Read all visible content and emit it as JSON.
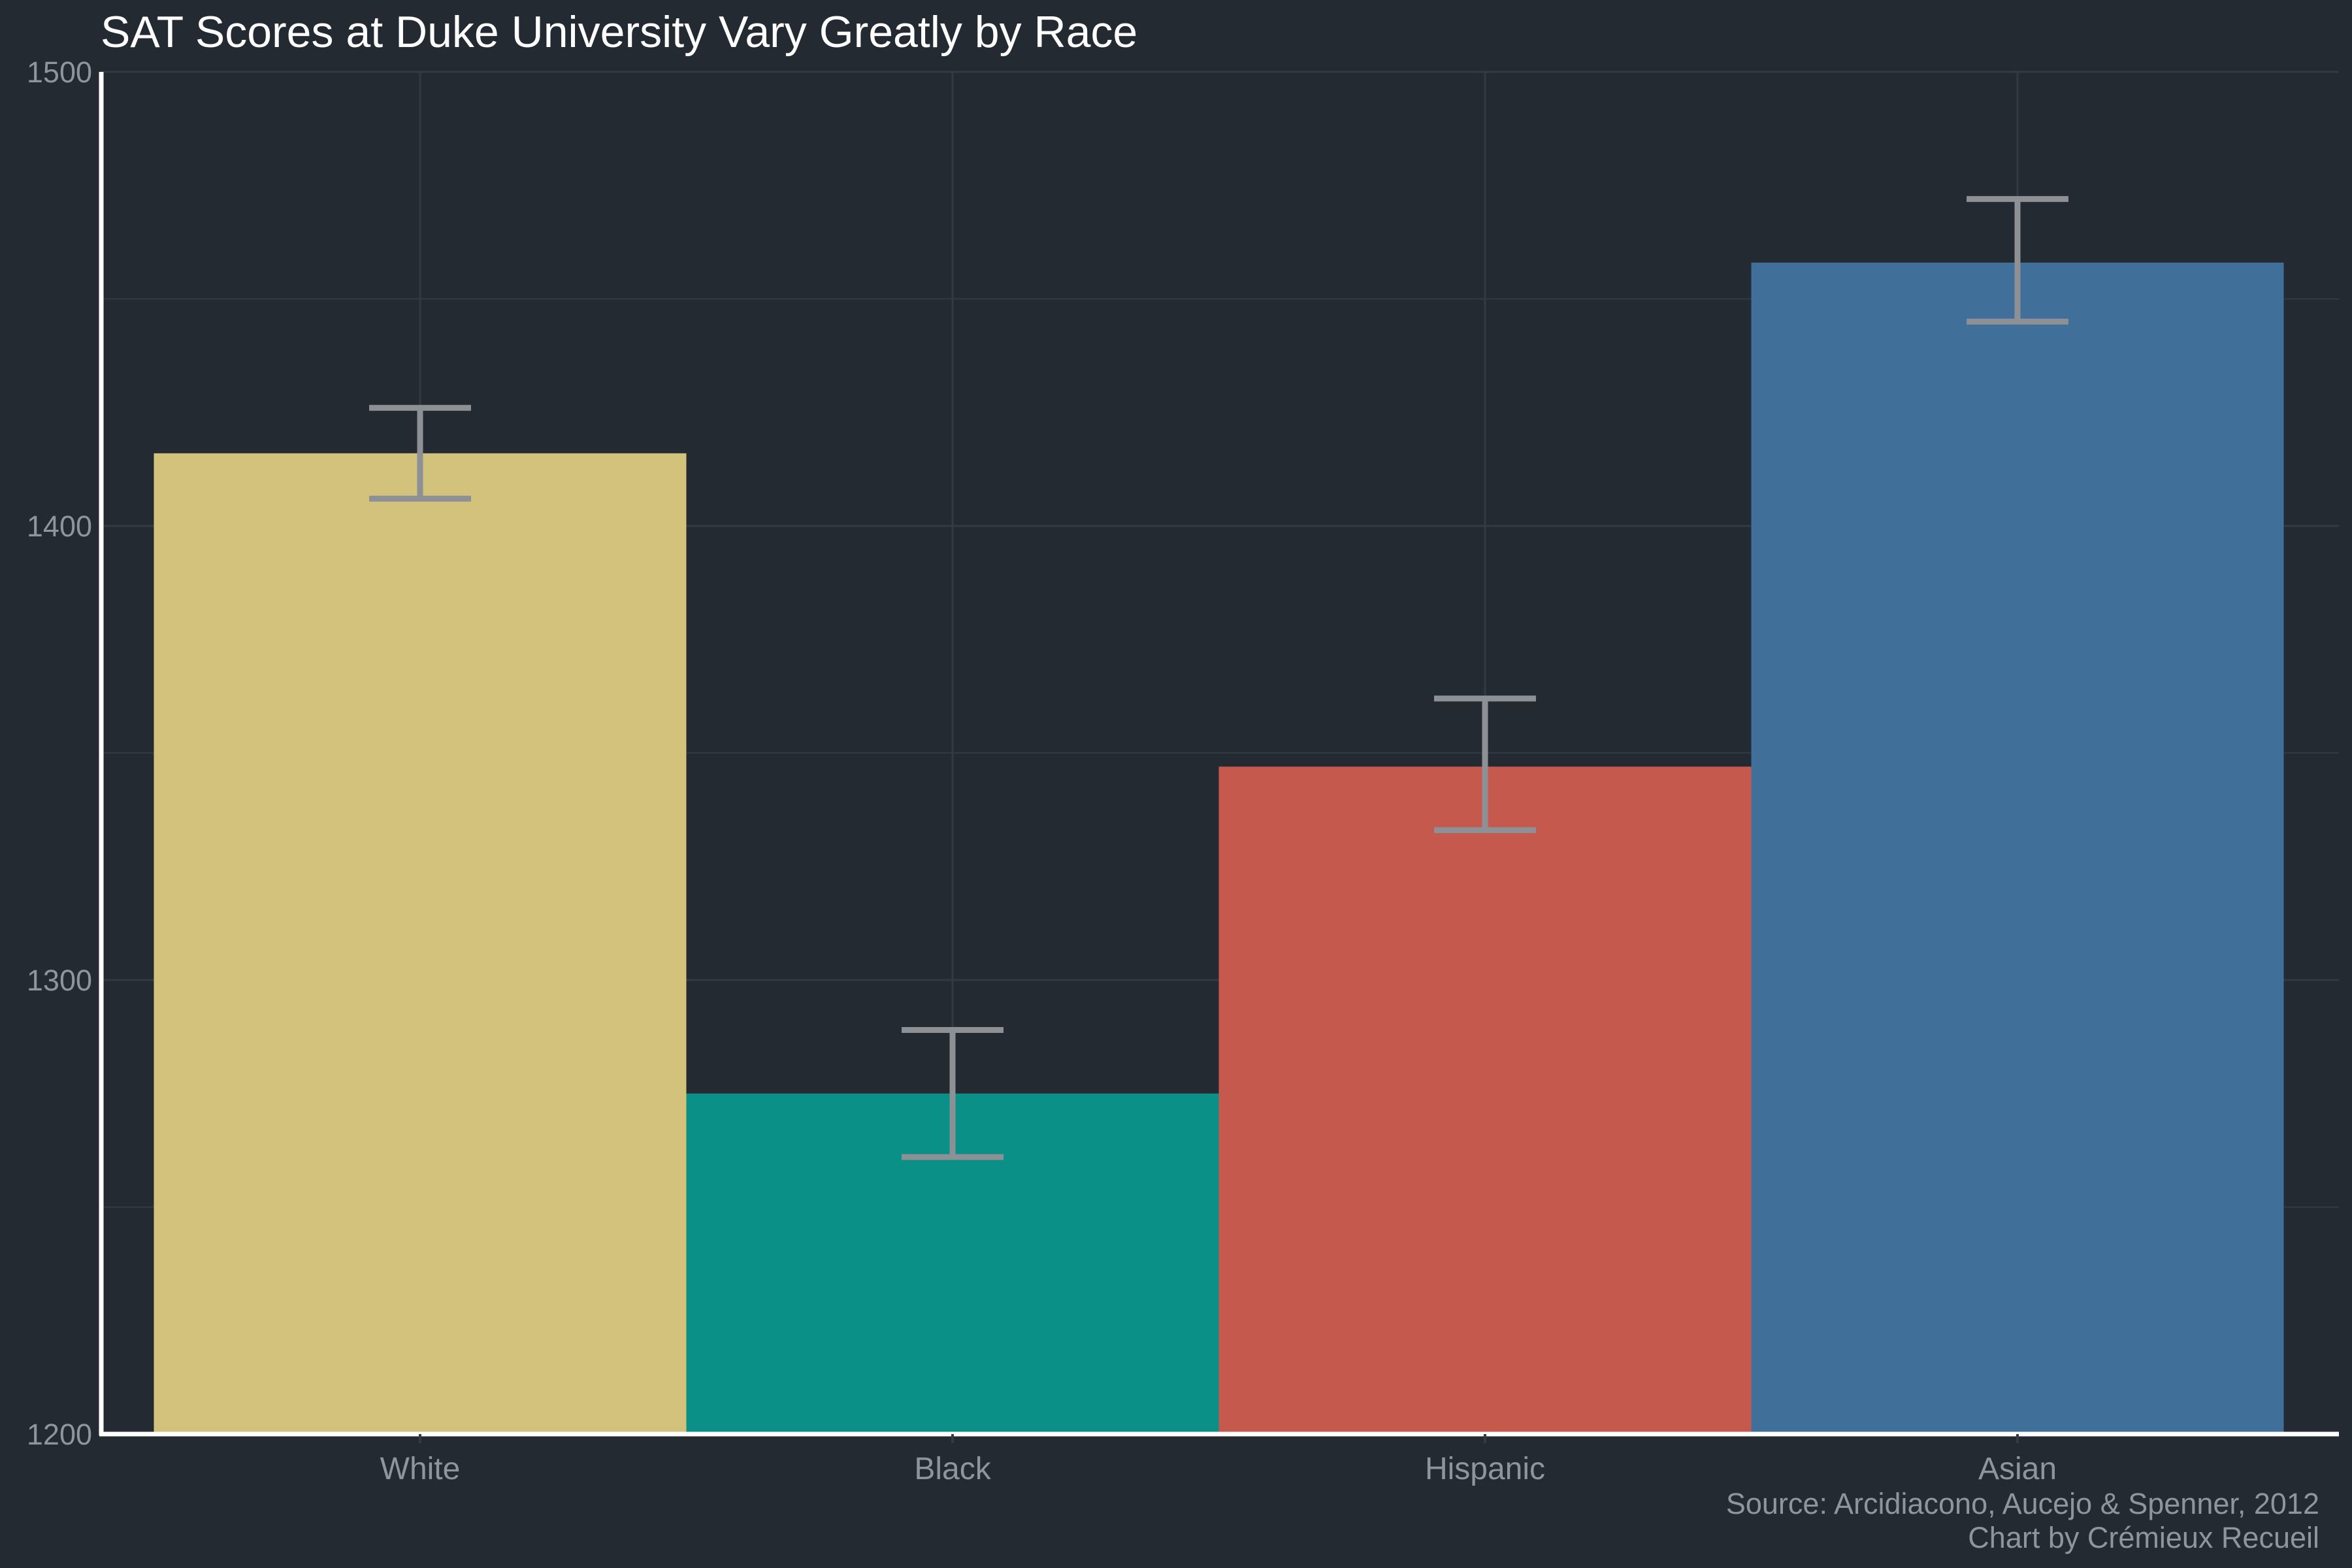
{
  "chart_data": {
    "type": "bar",
    "title": "SAT Scores at Duke University Vary Greatly by Race",
    "xlabel": "",
    "ylabel": "",
    "categories": [
      "White",
      "Black",
      "Hispanic",
      "Asian"
    ],
    "values": [
      1416,
      1275,
      1347,
      1458
    ],
    "error_low": [
      1406,
      1261,
      1333,
      1445
    ],
    "error_high": [
      1426,
      1289,
      1362,
      1472
    ],
    "colors": [
      "#d2c27b",
      "#0a9087",
      "#c6594e",
      "#40709a"
    ],
    "error_bar_color": "#8d9094",
    "ylim": [
      1200,
      1500
    ],
    "yticks": [
      1200,
      1300,
      1400,
      1500
    ],
    "grid": true,
    "legend": "none",
    "caption": {
      "source": "Source: Arcidiacono, Aucejo & Spenner, 2012",
      "credit": "Chart by Crémieux Recueil"
    }
  },
  "theme": {
    "background": "#242a32",
    "grid_color": "#343a42",
    "axis_color": "#ffffff",
    "tick_label_color": "#8f959c",
    "title_color": "#ffffff"
  }
}
